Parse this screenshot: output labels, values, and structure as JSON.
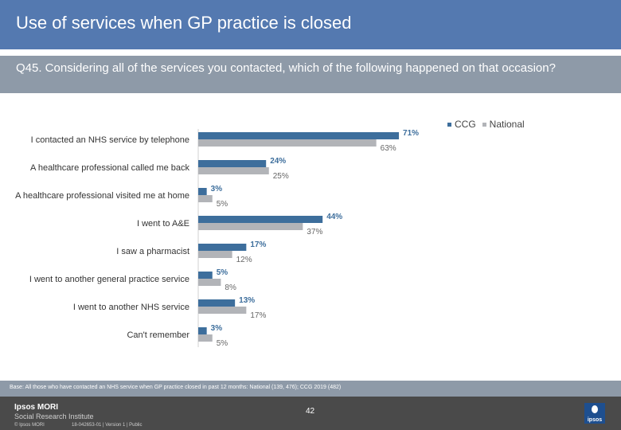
{
  "header": {
    "title": "Use of services when GP practice is closed"
  },
  "question": {
    "text": "Q45. Considering all of the services you contacted, which of the following happened on that occasion?"
  },
  "colors": {
    "ccg": "#3d6e9c",
    "national": "#b2b4b8",
    "header_bg": "#5479b0",
    "question_bg": "#8e9aa8"
  },
  "legend": {
    "ccg_label": "CCG",
    "national_label": "National"
  },
  "chart_data": {
    "type": "bar",
    "orientation": "horizontal",
    "categories": [
      "I contacted an NHS service by telephone",
      "A healthcare professional called me back",
      "A healthcare professional visited me at home",
      "I went to A&E",
      "I saw a pharmacist",
      "I went to another general practice service",
      "I  went to another NHS service",
      "Can't remember"
    ],
    "series": [
      {
        "name": "CCG",
        "values": [
          71,
          24,
          3,
          44,
          17,
          5,
          13,
          3
        ],
        "labels": [
          "71%",
          "24%",
          "3%",
          "44%",
          "17%",
          "5%",
          "13%",
          "3%"
        ]
      },
      {
        "name": "National",
        "values": [
          63,
          25,
          5,
          37,
          12,
          8,
          17,
          5
        ],
        "labels": [
          "63%",
          "25%",
          "5%",
          "37%",
          "12%",
          "8%",
          "17%",
          "5%"
        ]
      }
    ],
    "xlim": [
      0,
      100
    ],
    "legend_position": "top-right"
  },
  "footer": {
    "base": "Base: All those who have contacted an NHS service when GP practice closed in past 12 months: National (139, 476); CCG 2019 (482)",
    "logo_line1": "Ipsos MORI",
    "logo_line2": "Social Research Institute",
    "copyright": "© Ipsos MORI",
    "job": "18-042653-01 | Version 1 | Public",
    "page": "42",
    "badge": "ipsos"
  }
}
